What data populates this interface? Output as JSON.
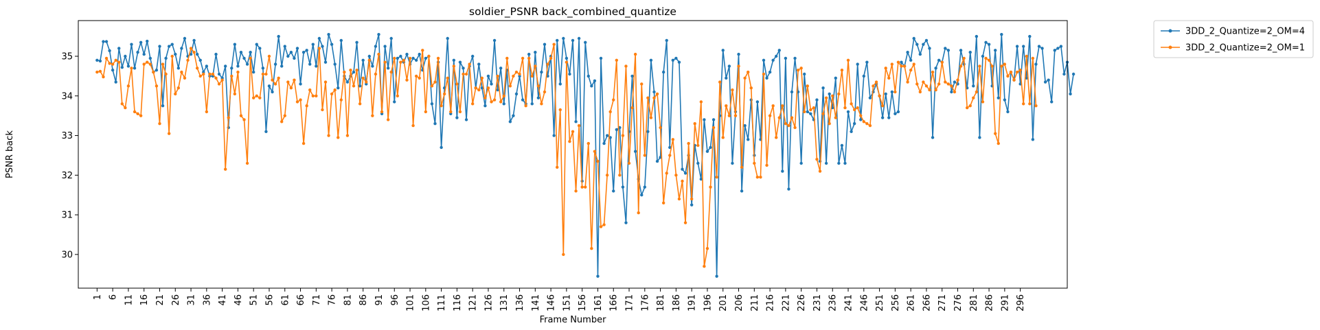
{
  "chart_data": {
    "type": "line",
    "title": "soldier_PSNR back_combined_quantize",
    "xlabel": "Frame Number",
    "ylabel": "PSNR back",
    "xlim": [
      -5,
      311
    ],
    "ylim": [
      29.15,
      35.9
    ],
    "x_ticks": [
      1,
      6,
      11,
      16,
      21,
      26,
      31,
      36,
      41,
      46,
      51,
      56,
      61,
      66,
      71,
      76,
      81,
      86,
      91,
      96,
      101,
      106,
      111,
      116,
      121,
      126,
      131,
      136,
      141,
      146,
      151,
      156,
      161,
      166,
      171,
      176,
      181,
      186,
      191,
      196,
      201,
      206,
      211,
      216,
      221,
      226,
      231,
      236,
      241,
      246,
      251,
      256,
      261,
      266,
      271,
      276,
      281,
      286,
      291,
      296
    ],
    "y_ticks": [
      30,
      31,
      32,
      33,
      34,
      35
    ],
    "grid": false,
    "legend_position": "outside-top-right",
    "series": [
      {
        "name": "3DD_2_Quantize=2_OM=4",
        "color": "#1f77b4",
        "values": [
          34.9,
          34.88,
          35.37,
          35.37,
          35.14,
          34.65,
          34.35,
          35.2,
          34.72,
          35.0,
          34.75,
          35.3,
          34.7,
          35.1,
          35.35,
          35.05,
          35.38,
          34.95,
          34.6,
          34.65,
          35.25,
          33.75,
          34.95,
          35.25,
          35.3,
          35.05,
          34.7,
          35.2,
          35.45,
          35.0,
          35.05,
          35.4,
          35.05,
          34.9,
          34.6,
          34.75,
          34.5,
          34.5,
          35.05,
          34.55,
          34.45,
          34.75,
          33.2,
          34.7,
          35.3,
          34.75,
          35.1,
          34.95,
          34.8,
          35.1,
          34.6,
          35.3,
          35.2,
          34.7,
          33.1,
          34.25,
          34.1,
          34.8,
          35.5,
          34.75,
          35.25,
          35.0,
          35.1,
          34.95,
          35.2,
          34.3,
          35.1,
          35.15,
          34.8,
          35.3,
          34.75,
          35.45,
          35.25,
          34.85,
          35.55,
          35.3,
          34.8,
          34.2,
          35.4,
          34.5,
          34.35,
          34.5,
          34.6,
          35.35,
          34.25,
          34.9,
          34.3,
          35.0,
          34.75,
          35.25,
          35.55,
          33.55,
          35.25,
          34.7,
          35.45,
          33.85,
          34.95,
          35.0,
          34.85,
          35.05,
          34.8,
          34.95,
          34.9,
          35.05,
          34.65,
          34.95,
          35.0,
          33.8,
          33.3,
          34.85,
          32.7,
          34.2,
          35.45,
          33.55,
          34.9,
          33.45,
          34.85,
          34.7,
          33.4,
          34.75,
          35.0,
          34.2,
          34.8,
          34.2,
          33.75,
          34.5,
          34.3,
          35.4,
          34.15,
          34.7,
          33.8,
          34.65,
          33.35,
          33.5,
          34.05,
          34.5,
          33.9,
          33.8,
          35.05,
          33.8,
          35.1,
          33.95,
          34.6,
          35.3,
          34.5,
          35.0,
          33.0,
          35.4,
          34.3,
          35.45,
          34.95,
          34.55,
          35.4,
          33.35,
          35.45,
          31.85,
          35.35,
          34.5,
          34.25,
          34.38,
          29.45,
          34.95,
          32.8,
          33.0,
          32.95,
          31.6,
          33.15,
          33.2,
          31.7,
          30.8,
          33.1,
          34.5,
          32.6,
          31.9,
          31.5,
          31.7,
          33.1,
          34.9,
          34.1,
          32.35,
          32.45,
          34.6,
          35.4,
          32.7,
          34.9,
          34.95,
          34.85,
          32.15,
          32.05,
          32.5,
          31.25,
          32.75,
          32.3,
          31.9,
          33.4,
          32.6,
          32.7,
          33.4,
          29.45,
          33.5,
          35.15,
          34.45,
          34.75,
          32.3,
          33.6,
          35.05,
          31.6,
          33.25,
          32.9,
          33.9,
          32.5,
          33.85,
          32.9,
          34.9,
          34.45,
          34.6,
          34.9,
          35.0,
          35.15,
          32.1,
          34.95,
          31.65,
          34.1,
          34.95,
          34.1,
          32.3,
          34.55,
          33.6,
          33.55,
          33.4,
          33.9,
          32.35,
          34.2,
          32.3,
          34.05,
          33.7,
          34.45,
          32.3,
          32.75,
          32.3,
          33.6,
          33.1,
          33.3,
          34.8,
          33.4,
          34.5,
          34.85,
          33.95,
          34.1,
          34.3,
          34.0,
          33.45,
          34.05,
          33.45,
          34.1,
          33.55,
          33.6,
          34.85,
          34.75,
          35.1,
          34.9,
          35.45,
          35.3,
          35.05,
          35.3,
          35.4,
          35.2,
          32.95,
          34.7,
          34.9,
          34.85,
          35.2,
          35.15,
          34.1,
          34.35,
          34.3,
          35.15,
          34.8,
          34.2,
          35.1,
          34.25,
          35.5,
          32.95,
          35.0,
          35.35,
          35.3,
          34.25,
          35.15,
          33.95,
          35.55,
          33.9,
          33.6,
          34.6,
          34.4,
          35.25,
          34.3,
          35.25,
          34.45,
          35.5,
          32.9,
          34.8,
          35.25,
          35.2,
          34.35,
          34.4,
          33.85,
          35.15,
          35.2,
          35.25,
          34.55,
          34.85,
          34.05,
          34.55
        ]
      },
      {
        "name": "3DD_2_Quantize=2_OM=1",
        "color": "#ff7f0e",
        "values": [
          34.6,
          34.62,
          34.48,
          34.95,
          34.82,
          34.8,
          34.9,
          34.85,
          33.8,
          33.7,
          34.25,
          34.7,
          33.6,
          33.55,
          33.5,
          34.8,
          34.85,
          34.8,
          34.6,
          34.25,
          33.3,
          34.8,
          34.55,
          33.05,
          35.0,
          34.05,
          34.2,
          34.6,
          34.45,
          34.9,
          35.2,
          35.1,
          34.7,
          34.5,
          34.55,
          33.6,
          34.55,
          34.55,
          34.45,
          34.3,
          34.4,
          32.15,
          33.45,
          34.5,
          34.05,
          34.6,
          33.5,
          33.4,
          32.3,
          34.95,
          33.95,
          34.0,
          33.95,
          34.55,
          34.55,
          35.0,
          34.4,
          34.3,
          34.45,
          33.35,
          33.5,
          34.35,
          34.2,
          34.4,
          33.85,
          33.9,
          32.8,
          33.75,
          34.15,
          34.0,
          34.0,
          35.2,
          33.65,
          34.35,
          33.0,
          34.05,
          34.15,
          32.95,
          33.9,
          34.6,
          33.0,
          34.65,
          34.25,
          34.65,
          33.8,
          34.45,
          34.35,
          34.9,
          33.5,
          34.55,
          35.05,
          33.6,
          34.85,
          33.4,
          34.6,
          34.95,
          34.0,
          34.85,
          34.9,
          34.4,
          34.95,
          33.25,
          34.5,
          34.45,
          35.15,
          33.6,
          35.0,
          34.25,
          34.35,
          34.95,
          33.75,
          34.05,
          34.45,
          33.6,
          34.75,
          34.3,
          33.6,
          34.55,
          34.55,
          34.8,
          33.8,
          34.2,
          34.15,
          34.45,
          33.95,
          34.2,
          33.85,
          33.9,
          34.5,
          33.85,
          34.0,
          34.95,
          34.25,
          34.5,
          34.6,
          34.55,
          34.95,
          33.75,
          34.95,
          34.5,
          34.75,
          34.25,
          33.8,
          34.1,
          34.8,
          34.95,
          35.3,
          32.2,
          33.65,
          30.0,
          34.85,
          32.85,
          33.1,
          31.6,
          33.25,
          31.7,
          31.7,
          32.8,
          30.15,
          32.6,
          32.35,
          30.7,
          30.75,
          32.0,
          33.6,
          33.9,
          34.9,
          32.0,
          33.0,
          34.75,
          32.3,
          33.7,
          35.05,
          31.05,
          34.3,
          32.5,
          33.95,
          33.45,
          33.95,
          34.05,
          33.2,
          31.3,
          32.05,
          32.5,
          32.9,
          32.0,
          31.4,
          31.85,
          30.8,
          32.8,
          31.4,
          33.3,
          32.75,
          33.85,
          29.7,
          30.15,
          31.7,
          33.2,
          31.95,
          34.35,
          32.95,
          33.75,
          33.5,
          34.15,
          33.5,
          34.75,
          32.2,
          34.45,
          34.6,
          34.2,
          32.3,
          31.95,
          31.95,
          34.55,
          32.25,
          33.5,
          33.75,
          32.95,
          33.45,
          33.75,
          33.3,
          33.25,
          33.45,
          33.2,
          34.65,
          34.7,
          33.6,
          34.25,
          33.65,
          33.7,
          32.4,
          32.1,
          33.55,
          33.95,
          33.3,
          34.0,
          33.45,
          34.05,
          34.65,
          33.7,
          34.9,
          33.8,
          33.65,
          33.7,
          33.5,
          33.35,
          33.3,
          33.25,
          34.25,
          34.35,
          34.0,
          33.75,
          34.7,
          34.45,
          34.8,
          34.1,
          34.85,
          34.75,
          34.75,
          34.35,
          34.65,
          34.8,
          34.3,
          34.1,
          34.35,
          34.25,
          34.15,
          34.6,
          34.15,
          34.3,
          34.85,
          34.35,
          34.3,
          34.25,
          34.1,
          34.4,
          34.75,
          34.95,
          33.7,
          33.75,
          33.95,
          34.1,
          34.75,
          33.85,
          34.95,
          34.9,
          34.75,
          33.05,
          32.8,
          34.75,
          34.8,
          34.5,
          34.6,
          34.4,
          34.6,
          34.65,
          33.8,
          35.0,
          33.8,
          34.95,
          33.75
        ]
      }
    ]
  }
}
